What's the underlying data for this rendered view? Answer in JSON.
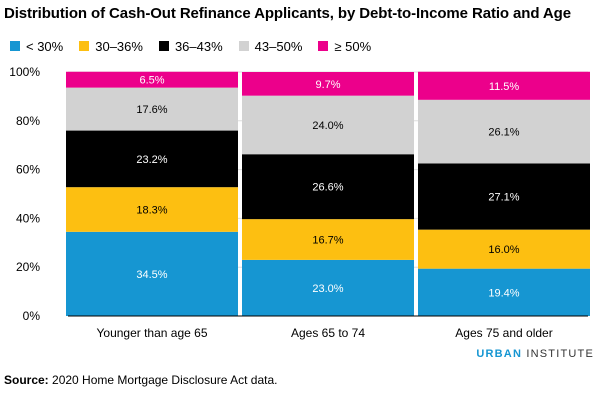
{
  "chart_data": {
    "type": "stacked-bar",
    "title": "Distribution of Cash-Out Refinance Applicants, by Debt-to-Income Ratio and Age",
    "categories": [
      "Younger than age 65",
      "Ages 65 to 74",
      "Ages 75 and older"
    ],
    "series": [
      {
        "name": "< 30%",
        "color": "#1696d2",
        "values": [
          34.5,
          23.0,
          19.4
        ],
        "labels": [
          "34.5%",
          "23.0%",
          "19.4%"
        ],
        "label_color": "#ffffff"
      },
      {
        "name": "30–36%",
        "color": "#fdbf11",
        "values": [
          18.3,
          16.7,
          16.0
        ],
        "labels": [
          "18.3%",
          "16.7%",
          "16.0%"
        ],
        "label_color": "#000000"
      },
      {
        "name": "36–43%",
        "color": "#000000",
        "values": [
          23.2,
          26.6,
          27.1
        ],
        "labels": [
          "23.2%",
          "26.6%",
          "27.1%"
        ],
        "label_color": "#ffffff"
      },
      {
        "name": "43–50%",
        "color": "#d2d2d2",
        "values": [
          17.6,
          24.0,
          26.1
        ],
        "labels": [
          "17.6%",
          "24.0%",
          "26.1%"
        ],
        "label_color": "#000000"
      },
      {
        "name": "≥ 50%",
        "color": "#ec008b",
        "values": [
          6.5,
          9.7,
          11.5
        ],
        "labels": [
          "6.5%",
          "9.7%",
          "11.5%"
        ],
        "label_color": "#ffffff"
      }
    ],
    "yticks": [
      0,
      20,
      40,
      60,
      80,
      100
    ],
    "ytick_labels": [
      "0%",
      "20%",
      "40%",
      "60%",
      "80%",
      "100%"
    ],
    "ylim": [
      0,
      100
    ],
    "xlabel": "",
    "ylabel": "",
    "grid": true,
    "legend_position": "top-left"
  },
  "footer": {
    "source_label": "Source:",
    "source_text": " 2020 Home Mortgage Disclosure Act data.",
    "brand_first": "URBAN",
    "brand_second": " INSTITUTE"
  }
}
